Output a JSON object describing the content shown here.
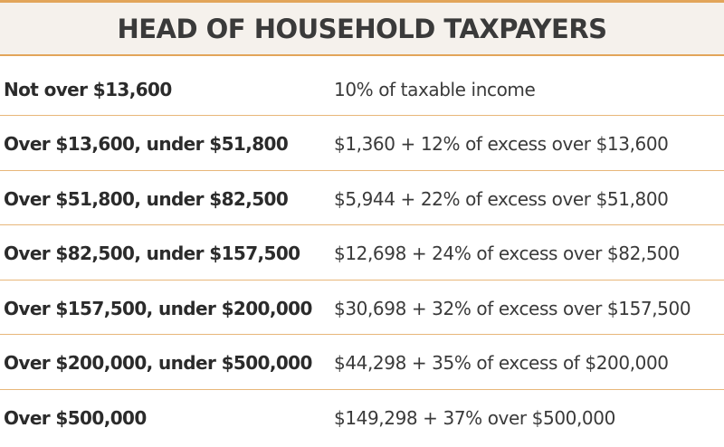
{
  "header": {
    "title": "HEAD OF HOUSEHOLD TAXPAYERS"
  },
  "table": {
    "rows": [
      [
        "Not over $13,600",
        "10% of taxable income"
      ],
      [
        "Over $13,600, under $51,800",
        "$1,360 + 12% of excess over $13,600"
      ],
      [
        "Over $51,800, under $82,500",
        "$5,944 + 22% of excess over $51,800"
      ],
      [
        "Over $82,500, under $157,500",
        "$12,698 + 24% of excess over $82,500"
      ],
      [
        "Over $157,500, under $200,000",
        "$30,698 + 32% of excess over $157,500"
      ],
      [
        "Over $200,000, under $500,000",
        "$44,298 + 35% of excess of $200,000"
      ],
      [
        "Over $500,000",
        "$149,298 + 37% over $500,000"
      ]
    ]
  }
}
